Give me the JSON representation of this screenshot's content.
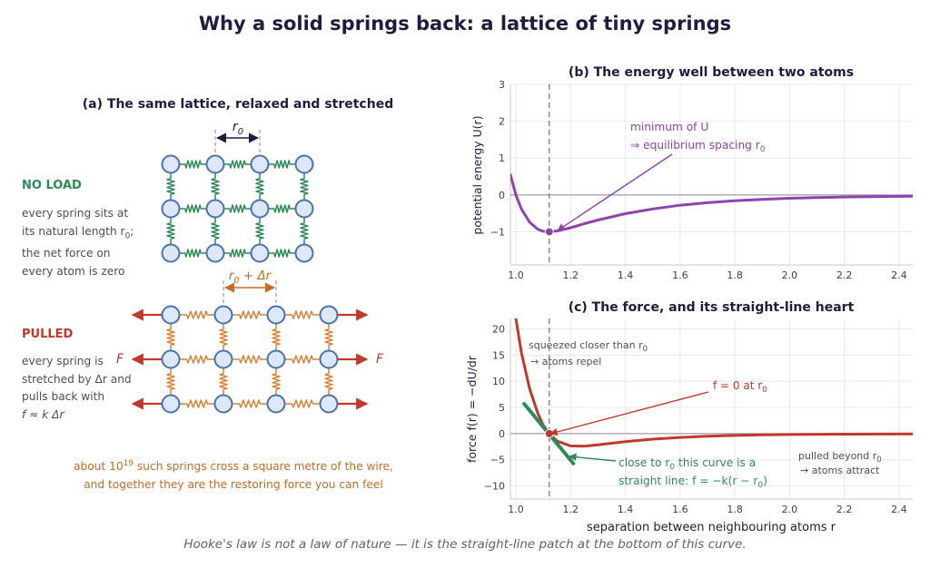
{
  "title": "Why a solid springs back: a lattice of tiny springs",
  "panel_a": {
    "title": "(a) The same lattice, relaxed and stretched",
    "spacing_relaxed": "r",
    "spacing_relaxed_sub": "0",
    "spacing_stretched": "r",
    "spacing_stretched_sub": "0",
    "spacing_stretched_tail": " + Δr",
    "no_load": {
      "heading": "NO LOAD",
      "line1": "every spring sits at",
      "line2a": "its natural length r",
      "line2sub": "0",
      "line2b": ";",
      "line3": "the net force on",
      "line4": "every atom is zero"
    },
    "pulled": {
      "heading": "PULLED",
      "line1": "every spring is",
      "line2": "stretched by Δr and",
      "line3": "pulls back with",
      "line4": "f ≈ k Δr"
    },
    "force_label": "F",
    "footnote_a": "about 10",
    "footnote_sup": "19",
    "footnote_b": " such springs cross a square metre of the wire,",
    "footnote_line2": "and together they are the restoring force you can feel",
    "colors": {
      "atom_fill": "#dce8f7",
      "atom_stroke": "#4a72b0",
      "relaxed_spring": "#2e8b57",
      "stretched_spring": "#d9823b",
      "arrow": "#c0392b"
    }
  },
  "panel_b": {
    "title": "(b) The energy well between two atoms",
    "annotation_line1": "minimum of U",
    "annotation_line2": "⇒  equilibrium spacing r",
    "annotation_sub": "0",
    "ylabel": "potential energy  U(r)"
  },
  "panel_c": {
    "title": "(c) The force, and its straight-line heart",
    "ann_repel_1": "squeezed closer than r",
    "ann_repel_sub": "0",
    "ann_repel_2": "→  atoms repel",
    "ann_zero": "f = 0 at r",
    "ann_zero_sub": "0",
    "ann_linear_1a": "close to r",
    "ann_linear_sub": "0",
    "ann_linear_1b": " this curve is a",
    "ann_linear_2": "straight line:  f = −k(r − r",
    "ann_linear_2sub": "0",
    "ann_linear_2tail": ")",
    "ann_attract_1": "pulled beyond r",
    "ann_attract_sub": "0",
    "ann_attract_2": "→  atoms attract",
    "ylabel": "force  f(r) = −dU/dr",
    "xlabel": "separation between neighbouring atoms  r"
  },
  "bottom_note": "Hooke's law is not a law of nature — it is the straight-line patch at the bottom of this curve.",
  "chart_data": [
    {
      "type": "line",
      "title": "(b) The energy well between two atoms",
      "xlabel": "",
      "ylabel": "potential energy  U(r)",
      "xlim": [
        0.98,
        2.45
      ],
      "ylim": [
        -1.9,
        3.0
      ],
      "xticks": [
        "1.0",
        "1.2",
        "1.4",
        "1.6",
        "1.8",
        "2.0",
        "2.2",
        "2.4"
      ],
      "yticks": [
        "-1",
        "0",
        "1",
        "2",
        "3"
      ],
      "equilibrium_r": 1.122,
      "minimum_point": [
        1.122,
        -1.0
      ],
      "grid": true,
      "series": [
        {
          "color": "#8e44ad",
          "x": [
            0.98,
            1.0,
            1.02,
            1.05,
            1.08,
            1.1,
            1.122,
            1.15,
            1.2,
            1.25,
            1.3,
            1.4,
            1.5,
            1.6,
            1.7,
            1.8,
            1.9,
            2.0,
            2.1,
            2.2,
            2.3,
            2.45
          ],
          "y": [
            0.55,
            0.0,
            -0.38,
            -0.74,
            -0.93,
            -0.99,
            -1.0,
            -0.98,
            -0.89,
            -0.78,
            -0.68,
            -0.51,
            -0.38,
            -0.28,
            -0.21,
            -0.16,
            -0.12,
            -0.09,
            -0.07,
            -0.055,
            -0.045,
            -0.035
          ]
        }
      ]
    },
    {
      "type": "line",
      "title": "(c) The force, and its straight-line heart",
      "xlabel": "separation between neighbouring atoms  r",
      "ylabel": "force  f(r) = −dU/dr",
      "xlim": [
        0.98,
        2.45
      ],
      "ylim": [
        -12.5,
        22
      ],
      "xticks": [
        "1.0",
        "1.2",
        "1.4",
        "1.6",
        "1.8",
        "2.0",
        "2.2",
        "2.4"
      ],
      "yticks": [
        "-10",
        "-5",
        "0",
        "5",
        "10",
        "15",
        "20"
      ],
      "equilibrium_r": 1.122,
      "zero_point": [
        1.122,
        0
      ],
      "grid": true,
      "series": [
        {
          "color": "#c0392b",
          "x": [
            1.0,
            1.02,
            1.05,
            1.08,
            1.1,
            1.122,
            1.15,
            1.2,
            1.25,
            1.3,
            1.4,
            1.5,
            1.6,
            1.7,
            1.8,
            1.9,
            2.0,
            2.2,
            2.45
          ],
          "y": [
            22.0,
            15.5,
            8.6,
            3.9,
            1.6,
            0.0,
            -1.4,
            -2.35,
            -2.4,
            -2.15,
            -1.55,
            -1.05,
            -0.72,
            -0.5,
            -0.35,
            -0.25,
            -0.18,
            -0.1,
            -0.05
          ]
        },
        {
          "color": "#2e8b57",
          "x": [
            1.03,
            1.21
          ],
          "y": [
            5.7,
            -5.7
          ]
        }
      ]
    }
  ]
}
